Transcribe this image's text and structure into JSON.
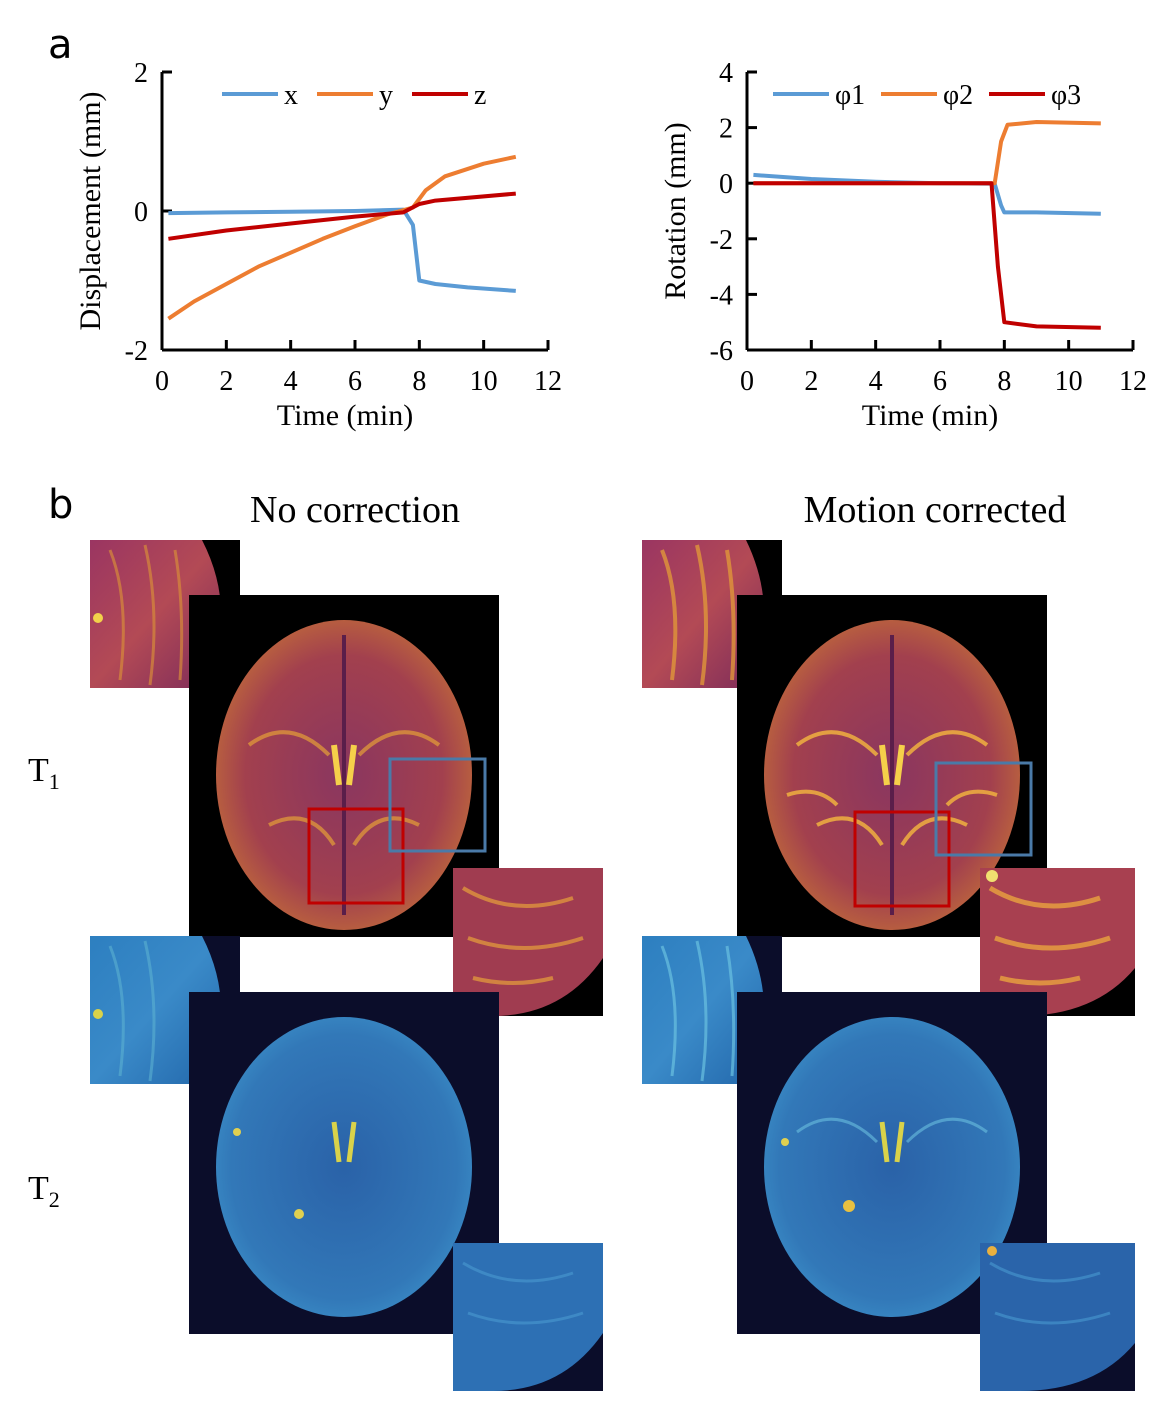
{
  "panels": {
    "a": "a",
    "b": "b"
  },
  "chart_data": [
    {
      "type": "line",
      "xlabel": "Time (min)",
      "ylabel": "Displacement (mm)",
      "xlim": [
        0,
        12
      ],
      "ylim": [
        -2,
        2
      ],
      "xticks": [
        0,
        2,
        4,
        6,
        8,
        10,
        12
      ],
      "yticks": [
        -2,
        0,
        2
      ],
      "legend": "top",
      "series": [
        {
          "name": "x",
          "color": "#5b9bd5",
          "x": [
            0.2,
            2,
            4,
            6,
            7.5,
            7.8,
            8.0,
            8.5,
            9.5,
            11
          ],
          "y": [
            -0.03,
            -0.02,
            -0.01,
            0.0,
            0.02,
            -0.2,
            -1.0,
            -1.05,
            -1.1,
            -1.15
          ]
        },
        {
          "name": "y",
          "color": "#ed7d31",
          "x": [
            0.2,
            1,
            2,
            3,
            4,
            5,
            6,
            7,
            7.8,
            8.2,
            8.8,
            10,
            11
          ],
          "y": [
            -1.55,
            -1.3,
            -1.05,
            -0.8,
            -0.6,
            -0.4,
            -0.22,
            -0.05,
            0.05,
            0.3,
            0.5,
            0.68,
            0.78
          ]
        },
        {
          "name": "z",
          "color": "#c00000",
          "x": [
            0.2,
            2,
            4,
            6,
            7.5,
            8.0,
            8.5,
            11
          ],
          "y": [
            -0.4,
            -0.28,
            -0.18,
            -0.08,
            -0.02,
            0.1,
            0.15,
            0.25
          ]
        }
      ]
    },
    {
      "type": "line",
      "xlabel": "Time (min)",
      "ylabel": "Rotation (mm)",
      "xlim": [
        0,
        12
      ],
      "ylim": [
        -6,
        4
      ],
      "xticks": [
        0,
        2,
        4,
        6,
        8,
        10,
        12
      ],
      "yticks": [
        -6,
        -4,
        -2,
        0,
        2,
        4
      ],
      "legend": "top",
      "series": [
        {
          "name": "φ1",
          "color": "#5b9bd5",
          "x": [
            0.2,
            2,
            4,
            6,
            7.7,
            7.9,
            8.0,
            9,
            11
          ],
          "y": [
            0.3,
            0.15,
            0.05,
            0.0,
            -0.02,
            -0.8,
            -1.05,
            -1.05,
            -1.1
          ]
        },
        {
          "name": "φ2",
          "color": "#ed7d31",
          "x": [
            0.2,
            2,
            4,
            6,
            7.7,
            7.9,
            8.1,
            9,
            11
          ],
          "y": [
            0.0,
            0.0,
            0.0,
            0.0,
            0.0,
            1.5,
            2.1,
            2.2,
            2.15
          ]
        },
        {
          "name": "φ3",
          "color": "#c00000",
          "x": [
            0.2,
            2,
            4,
            6,
            7.6,
            7.8,
            8.0,
            9,
            11
          ],
          "y": [
            0.0,
            0.0,
            0.0,
            0.0,
            0.0,
            -3.0,
            -5.0,
            -5.15,
            -5.2
          ]
        }
      ]
    }
  ],
  "figure_b": {
    "col_left": "No correction",
    "col_right": "Motion corrected",
    "row1": {
      "base": "T",
      "sub": "1"
    },
    "row2": {
      "base": "T",
      "sub": "2"
    },
    "colors": {
      "t1_bg": "#000000",
      "t1_brain": "#8c2d4b",
      "t1_hot": "#e8a02a",
      "t2_bg": "#0b0d2a",
      "t2_brain": "#2e6db8",
      "t2_hot": "#d9d24a",
      "box_red": "#c00000",
      "box_blue": "#4a7aa8"
    }
  }
}
